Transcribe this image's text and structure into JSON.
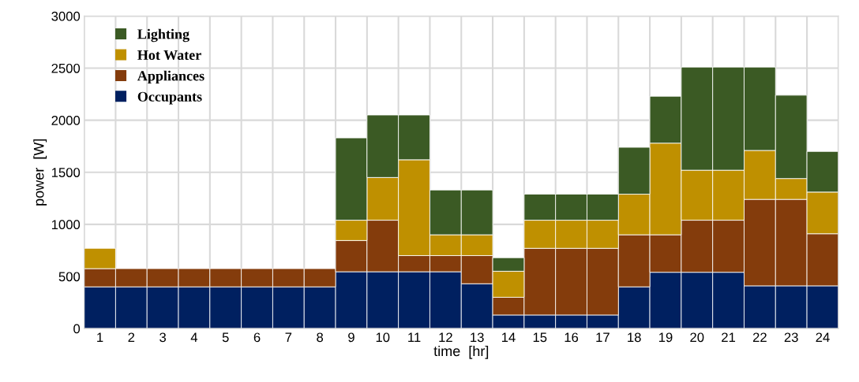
{
  "chart_data": {
    "type": "bar",
    "stacked": true,
    "xlabel": "time  [hr]",
    "ylabel": "power  [W]",
    "categories": [
      "1",
      "2",
      "3",
      "4",
      "5",
      "6",
      "7",
      "8",
      "9",
      "10",
      "11",
      "12",
      "13",
      "14",
      "15",
      "16",
      "17",
      "18",
      "19",
      "20",
      "21",
      "22",
      "23",
      "24"
    ],
    "series": [
      {
        "name": "Occupants",
        "color": "#002060",
        "values": [
          400,
          400,
          400,
          400,
          400,
          400,
          400,
          400,
          545,
          545,
          545,
          545,
          430,
          130,
          130,
          130,
          130,
          400,
          540,
          540,
          540,
          410,
          410,
          410
        ]
      },
      {
        "name": "Appliances",
        "color": "#843c0c",
        "values": [
          175,
          175,
          175,
          175,
          175,
          175,
          175,
          175,
          300,
          495,
          155,
          155,
          270,
          170,
          640,
          640,
          640,
          500,
          360,
          500,
          500,
          830,
          830,
          500
        ]
      },
      {
        "name": "Hot Water",
        "color": "#bf9000",
        "values": [
          195,
          0,
          0,
          0,
          0,
          0,
          0,
          0,
          195,
          410,
          920,
          200,
          200,
          250,
          270,
          270,
          270,
          390,
          880,
          480,
          480,
          470,
          200,
          400
        ]
      },
      {
        "name": "Lighting",
        "color": "#3b5a24",
        "values": [
          0,
          0,
          0,
          0,
          0,
          0,
          0,
          0,
          790,
          600,
          430,
          430,
          430,
          130,
          250,
          250,
          250,
          450,
          450,
          990,
          990,
          800,
          800,
          390
        ]
      }
    ],
    "ylim": [
      0,
      3000
    ],
    "yticks": [
      0,
      500,
      1000,
      1500,
      2000,
      2500,
      3000
    ],
    "grid": true,
    "legend": "top left"
  }
}
